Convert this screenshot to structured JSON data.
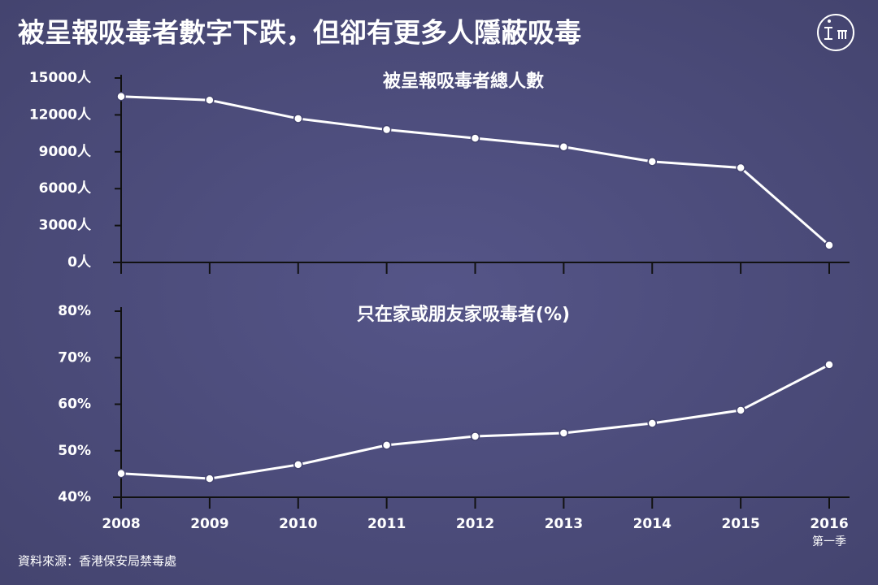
{
  "title": "被呈報吸毒者數字下跌，但卻有更多人隱蔽吸毒",
  "source": "資料來源：香港保安局禁毒處",
  "chart_data": [
    {
      "type": "line",
      "title": "被呈報吸毒者總人數",
      "color": "#ffffff",
      "values": [
        13500,
        13200,
        11700,
        10800,
        10100,
        9400,
        8200,
        7700,
        1400
      ],
      "ylim": [
        0,
        15000
      ],
      "yticks": [
        {
          "value": 0,
          "label": "0人"
        },
        {
          "value": 3000,
          "label": "3000人"
        },
        {
          "value": 6000,
          "label": "6000人"
        },
        {
          "value": 9000,
          "label": "9000人"
        },
        {
          "value": 12000,
          "label": "12000人"
        },
        {
          "value": 15000,
          "label": "15000人"
        }
      ]
    },
    {
      "type": "line",
      "title": "只在家或朋友家吸毒者(%)",
      "color": "#ffffff",
      "categories": [
        "2008",
        "2009",
        "2010",
        "2011",
        "2012",
        "2013",
        "2014",
        "2015",
        "2016"
      ],
      "x_annotation": "第一季",
      "values": [
        45.1,
        44.0,
        47.0,
        51.2,
        53.1,
        53.8,
        55.9,
        58.7,
        68.5
      ],
      "ylim": [
        40,
        80
      ],
      "yticks": [
        {
          "value": 40,
          "label": "40%"
        },
        {
          "value": 50,
          "label": "50%"
        },
        {
          "value": 60,
          "label": "60%"
        },
        {
          "value": 70,
          "label": "70%"
        },
        {
          "value": 80,
          "label": "80%"
        }
      ]
    }
  ]
}
